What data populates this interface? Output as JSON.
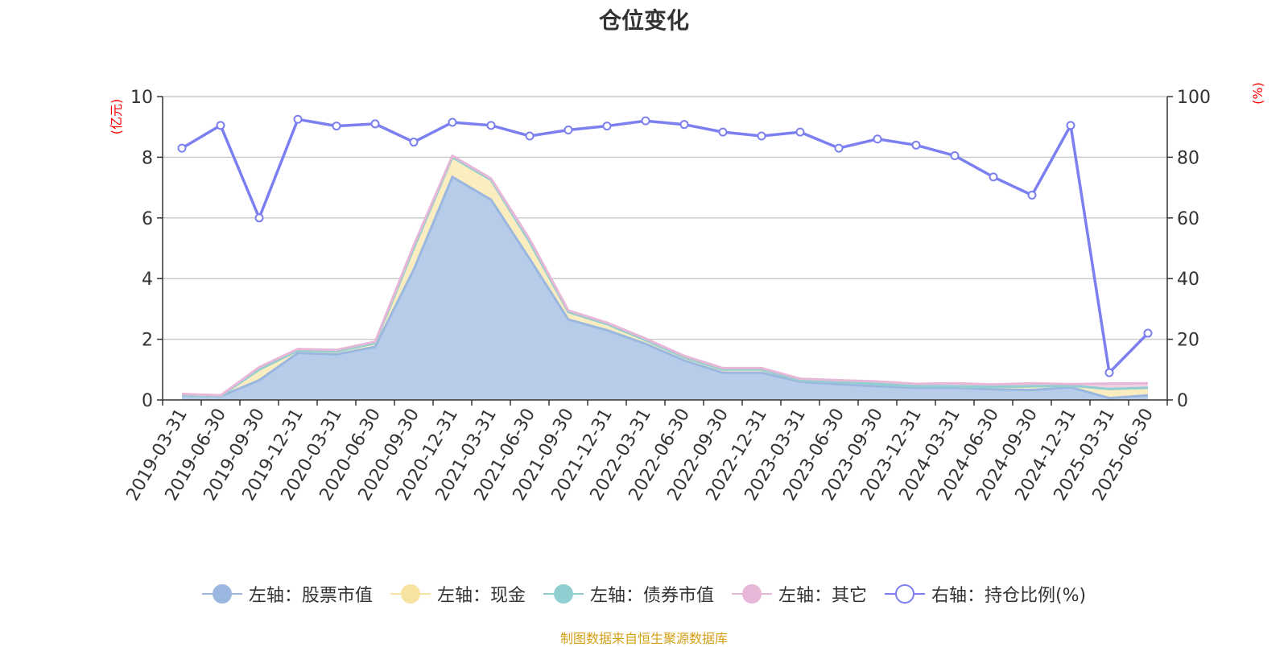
{
  "chart_data": {
    "type": "area",
    "title": "仓位变化",
    "left_axis_unit": "(亿元)",
    "right_axis_unit": "(%)",
    "left_ylim": [
      0,
      10
    ],
    "left_ticks": [
      0,
      2,
      4,
      6,
      8,
      10
    ],
    "right_ylim": [
      0,
      100
    ],
    "right_ticks": [
      0,
      20,
      40,
      60,
      80,
      100
    ],
    "grid": true,
    "legend_position": "bottom",
    "categories": [
      "2019-03-31",
      "2019-06-30",
      "2019-09-30",
      "2019-12-31",
      "2020-03-31",
      "2020-06-30",
      "2020-09-30",
      "2020-12-31",
      "2021-03-31",
      "2021-06-30",
      "2021-09-30",
      "2021-12-31",
      "2022-03-31",
      "2022-06-30",
      "2022-09-30",
      "2022-12-31",
      "2023-03-31",
      "2023-06-30",
      "2023-09-30",
      "2023-12-31",
      "2024-03-31",
      "2024-06-30",
      "2024-09-30",
      "2024-12-31",
      "2025-03-31",
      "2025-06-30"
    ],
    "series": [
      {
        "name": "左轴：股票市值",
        "axis": "left",
        "color": "#9ab7e0",
        "fill": "#b7cce9",
        "values": [
          0.15,
          0.12,
          0.65,
          1.55,
          1.5,
          1.75,
          4.3,
          7.35,
          6.6,
          4.65,
          2.65,
          2.3,
          1.85,
          1.3,
          0.9,
          0.9,
          0.6,
          0.52,
          0.45,
          0.4,
          0.4,
          0.35,
          0.33,
          0.42,
          0.06,
          0.15
        ]
      },
      {
        "name": "左轴：现金",
        "axis": "left",
        "color": "#f6e3a1",
        "fill": "#fbedc0",
        "values": [
          0.02,
          0.01,
          0.35,
          0.08,
          0.1,
          0.12,
          0.7,
          0.65,
          0.65,
          0.55,
          0.25,
          0.2,
          0.12,
          0.1,
          0.1,
          0.1,
          0.05,
          0.08,
          0.08,
          0.05,
          0.05,
          0.08,
          0.12,
          0.05,
          0.3,
          0.25
        ]
      },
      {
        "name": "左轴：债券市值",
        "axis": "left",
        "color": "#8fcfd1",
        "fill": "#b8e2e3",
        "values": [
          0,
          0,
          0,
          0,
          0,
          0,
          0,
          0,
          0,
          0,
          0,
          0,
          0,
          0,
          0,
          0,
          0,
          0,
          0,
          0,
          0,
          0,
          0,
          0,
          0,
          0
        ]
      },
      {
        "name": "左轴：其它",
        "axis": "left",
        "color": "#e6b7d6",
        "fill": "#f0d0e5",
        "values": [
          0.03,
          0.02,
          0.08,
          0.05,
          0.05,
          0.05,
          0.1,
          0.05,
          0.05,
          0.1,
          0.05,
          0.05,
          0.05,
          0.05,
          0.05,
          0.05,
          0.05,
          0.05,
          0.08,
          0.08,
          0.1,
          0.08,
          0.1,
          0.05,
          0.18,
          0.15
        ]
      },
      {
        "name": "右轴：持仓比例(%)",
        "axis": "right",
        "color": "#7b7ff0",
        "values": [
          83,
          90.5,
          60,
          92.5,
          90.3,
          91,
          85,
          91.5,
          90.5,
          87,
          89,
          90.3,
          92,
          90.8,
          88.3,
          87,
          88.3,
          83,
          86,
          84,
          80.5,
          73.5,
          67.5,
          90.5,
          9,
          22
        ]
      }
    ]
  },
  "footer": {
    "source": "制图数据来自恒生聚源数据库"
  }
}
